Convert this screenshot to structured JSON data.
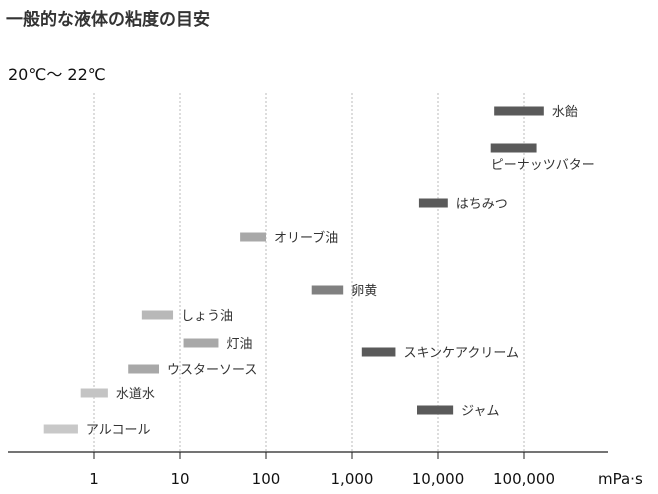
{
  "chart_data": {
    "type": "bar",
    "orientation": "horizontal-range",
    "title": "一般的な液体の粘度の目安",
    "subtitle": "20℃～ 22℃",
    "xlabel": "mPa·s",
    "xscale": "log",
    "xlim": [
      0.1,
      1000000
    ],
    "xticks": [
      1,
      10,
      100,
      1000,
      10000,
      100000
    ],
    "xtick_labels": [
      "1",
      "10",
      "100",
      "1,000",
      "10,000",
      "100,000"
    ],
    "grid": "vertical dotted",
    "items": [
      {
        "name": "水飴",
        "low": 45000,
        "high": 170000,
        "color": "#5a5a5a",
        "label_pos": "right"
      },
      {
        "name": "ピーナッツバター",
        "low": 41000,
        "high": 140000,
        "color": "#5a5a5a",
        "label_pos": "below"
      },
      {
        "name": "はちみつ",
        "low": 6000,
        "high": 13000,
        "color": "#5a5a5a",
        "label_pos": "right"
      },
      {
        "name": "オリーブ油",
        "low": 50,
        "high": 100,
        "color": "#a8a8a8",
        "label_pos": "right"
      },
      {
        "name": "卵黄",
        "low": 340,
        "high": 790,
        "color": "#808080",
        "label_pos": "right"
      },
      {
        "name": "しょう油",
        "low": 3.6,
        "high": 8.3,
        "color": "#b8b8b8",
        "label_pos": "right"
      },
      {
        "name": "灯油",
        "low": 11,
        "high": 28,
        "color": "#a8a8a8",
        "label_pos": "right"
      },
      {
        "name": "スキンケアクリーム",
        "low": 1300,
        "high": 3200,
        "color": "#5a5a5a",
        "label_pos": "right"
      },
      {
        "name": "ウスターソース",
        "low": 2.5,
        "high": 5.7,
        "color": "#a8a8a8",
        "label_pos": "right"
      },
      {
        "name": "水道水",
        "low": 0.7,
        "high": 1.45,
        "color": "#c4c4c4",
        "label_pos": "right"
      },
      {
        "name": "ジャム",
        "low": 5700,
        "high": 15000,
        "color": "#5a5a5a",
        "label_pos": "right"
      },
      {
        "name": "アルコール",
        "low": 0.26,
        "high": 0.65,
        "color": "#c8c8c8",
        "label_pos": "right"
      }
    ]
  }
}
